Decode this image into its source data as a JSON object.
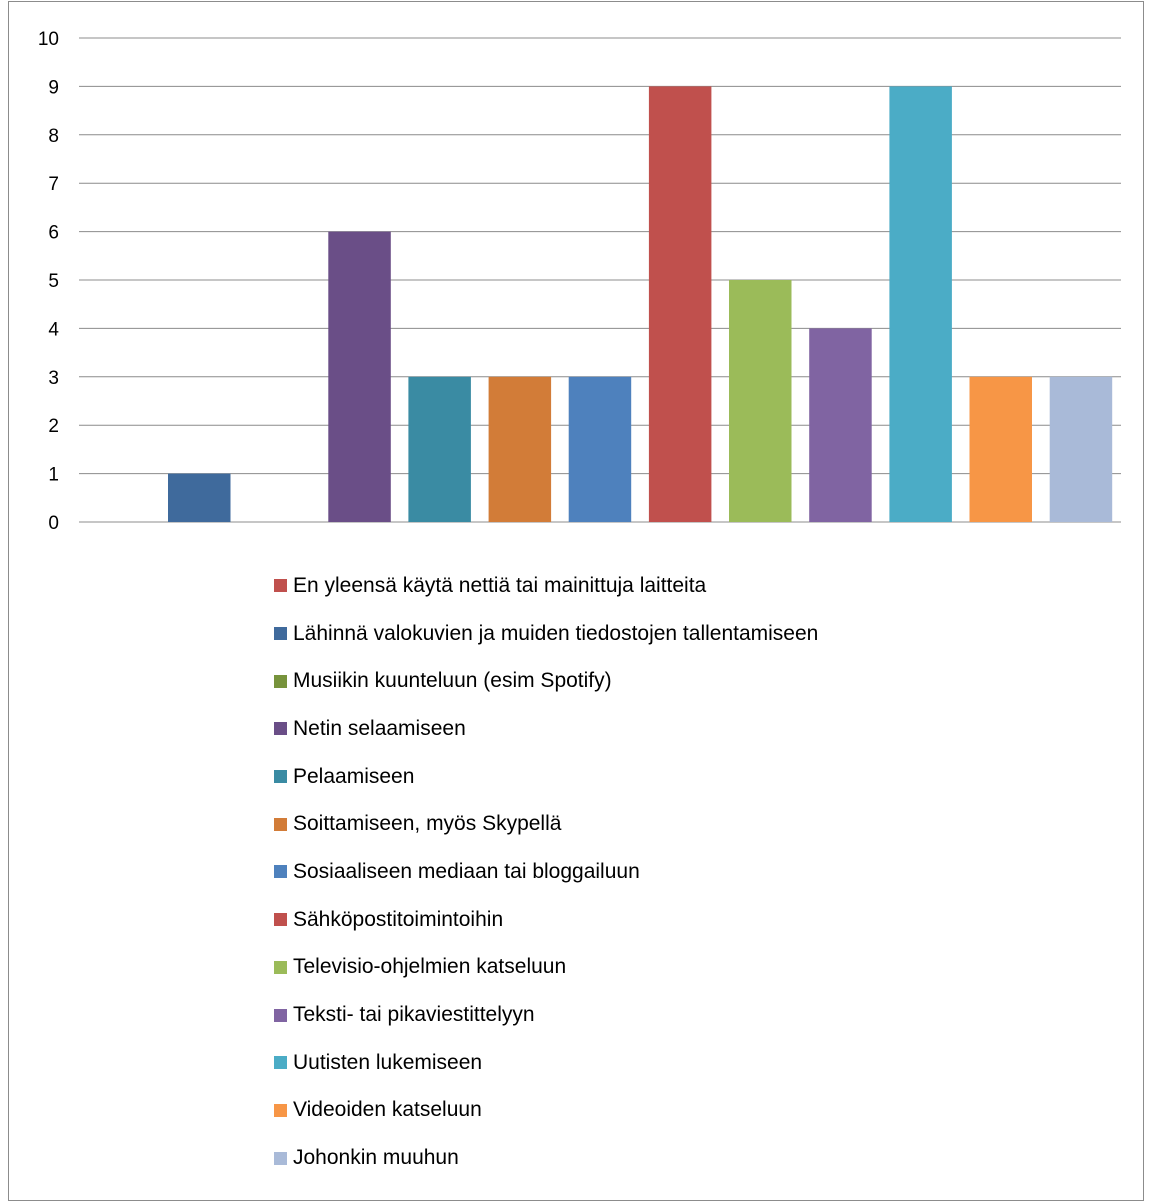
{
  "chart_data": {
    "type": "bar",
    "ylim": [
      0,
      10
    ],
    "yticks": [
      "0",
      "1",
      "2",
      "3",
      "4",
      "5",
      "6",
      "7",
      "8",
      "9",
      "10"
    ],
    "grid": true,
    "legend_position": "bottom",
    "series": [
      {
        "name": "En yleensä käytä nettiä tai mainittuja laitteita",
        "value": 0,
        "color": "#C0504D"
      },
      {
        "name": "Lähinnä valokuvien ja muiden tiedostojen tallentamiseen",
        "value": 1,
        "color": "#3F6A9C"
      },
      {
        "name": "Musiikin kuunteluun (esim Spotify)",
        "value": 0,
        "color": "#77933C"
      },
      {
        "name": "Netin selaamiseen",
        "value": 6,
        "color": "#6A4E87"
      },
      {
        "name": "Pelaamiseen",
        "value": 3,
        "color": "#3A8BA3"
      },
      {
        "name": "Soittamiseen, myös Skypellä",
        "value": 3,
        "color": "#D27C38"
      },
      {
        "name": "Sosiaaliseen mediaan tai bloggailuun",
        "value": 3,
        "color": "#4E81BD"
      },
      {
        "name": "Sähköpostitoimintoihin",
        "value": 9,
        "color": "#C0504D"
      },
      {
        "name": "Televisio-ohjelmien katseluun",
        "value": 5,
        "color": "#9BBB59"
      },
      {
        "name": "Teksti- tai pikaviestittelyyn",
        "value": 4,
        "color": "#8064A2"
      },
      {
        "name": "Uutisten lukemiseen",
        "value": 9,
        "color": "#4BACC6"
      },
      {
        "name": "Videoiden katseluun",
        "value": 3,
        "color": "#F79646"
      },
      {
        "name": "Johonkin muuhun",
        "value": 3,
        "color": "#A9BAD8"
      }
    ]
  }
}
